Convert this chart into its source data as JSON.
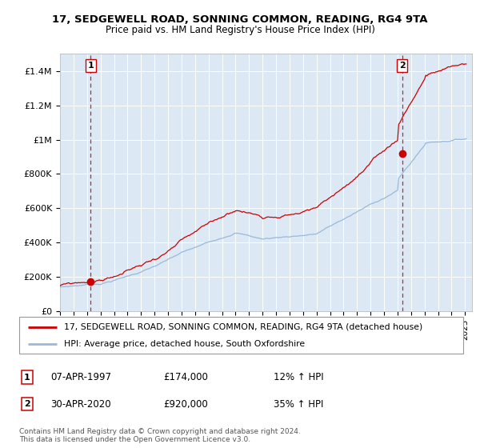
{
  "title1": "17, SEDGEWELL ROAD, SONNING COMMON, READING, RG4 9TA",
  "title2": "Price paid vs. HM Land Registry's House Price Index (HPI)",
  "legend_line1": "17, SEDGEWELL ROAD, SONNING COMMON, READING, RG4 9TA (detached house)",
  "legend_line2": "HPI: Average price, detached house, South Oxfordshire",
  "annotation1_label": "1",
  "annotation1_date": "07-APR-1997",
  "annotation1_price": "£174,000",
  "annotation1_hpi": "12% ↑ HPI",
  "annotation2_label": "2",
  "annotation2_date": "30-APR-2020",
  "annotation2_price": "£920,000",
  "annotation2_hpi": "35% ↑ HPI",
  "footnote": "Contains HM Land Registry data © Crown copyright and database right 2024.\nThis data is licensed under the Open Government Licence v3.0.",
  "sale1_year": 1997.27,
  "sale1_price": 174000,
  "sale2_year": 2020.33,
  "sale2_price": 920000,
  "hpi_color": "#9ab8d8",
  "price_color": "#cc0000",
  "dashed_color": "#cc0000",
  "bg_color": "#dce9f5",
  "plot_bg": "#dce9f5",
  "grid_color": "#ffffff",
  "ylim_min": 0,
  "ylim_max": 1500000,
  "xlim_min": 1995.0,
  "xlim_max": 2025.5
}
